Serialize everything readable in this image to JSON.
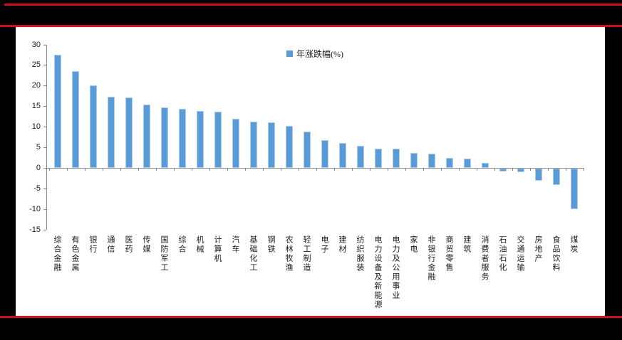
{
  "page": {
    "background_color": "#000000",
    "accent_red": "#c8101e",
    "panel_color": "#ffffff"
  },
  "chart_data": {
    "type": "bar",
    "title": "",
    "legend_label": "年涨跌幅(%)",
    "legend_position": "top-center",
    "bar_color": "#5b9bd5",
    "bar_edge_color": "#aecde9",
    "axis_color": "#898989",
    "grid": false,
    "ylim": [
      -15,
      30
    ],
    "ytick_step": 5,
    "yticks": [
      30,
      25,
      20,
      15,
      10,
      5,
      0,
      -5,
      -10,
      -15
    ],
    "categories": [
      "综合金融",
      "有色金属",
      "银行",
      "通信",
      "医药",
      "传媒",
      "国防军工",
      "综合",
      "机械",
      "计算机",
      "汽车",
      "基础化工",
      "钢铁",
      "农林牧渔",
      "轻工制造",
      "电子",
      "建材",
      "纺织服装",
      "电力设备及新能源",
      "电力及公用事业",
      "家电",
      "非银行金融",
      "商贸零售",
      "建筑",
      "消费者服务",
      "石油石化",
      "交通运输",
      "房地产",
      "食品饮料",
      "煤炭"
    ],
    "values": [
      27.5,
      23.5,
      20.0,
      17.3,
      17.2,
      15.4,
      14.7,
      14.4,
      13.8,
      13.6,
      12.0,
      11.3,
      11.0,
      10.2,
      8.8,
      6.8,
      6.1,
      5.3,
      4.7,
      4.6,
      3.7,
      3.5,
      2.5,
      2.2,
      1.2,
      -0.7,
      -0.8,
      -3.0,
      -4.0,
      -9.9
    ]
  }
}
